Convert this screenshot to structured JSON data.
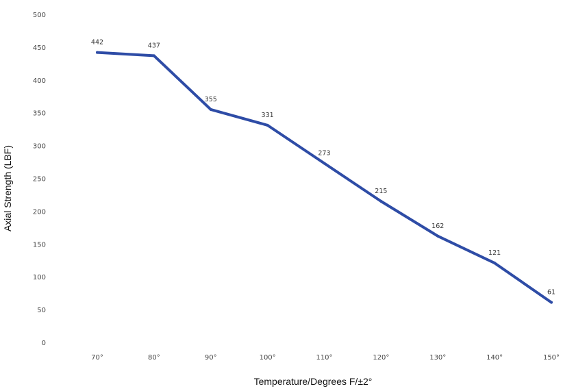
{
  "chart_data": {
    "type": "line",
    "title": "",
    "xlabel": "Temperature/Degrees F/±2°",
    "ylabel": "Axial Strength (LBF)",
    "categories": [
      "70°",
      "80°",
      "90°",
      "100°",
      "110°",
      "120°",
      "130°",
      "140°",
      "150°"
    ],
    "series": [
      {
        "values": [
          442,
          437,
          355,
          331,
          273,
          215,
          162,
          121,
          61
        ]
      }
    ],
    "y_ticks": [
      0,
      50,
      100,
      150,
      200,
      250,
      300,
      350,
      400,
      450,
      500
    ],
    "ylim": [
      0,
      500
    ],
    "grid": false,
    "legend": "none",
    "data_labels": true,
    "line_color": "#2e4ca6"
  }
}
